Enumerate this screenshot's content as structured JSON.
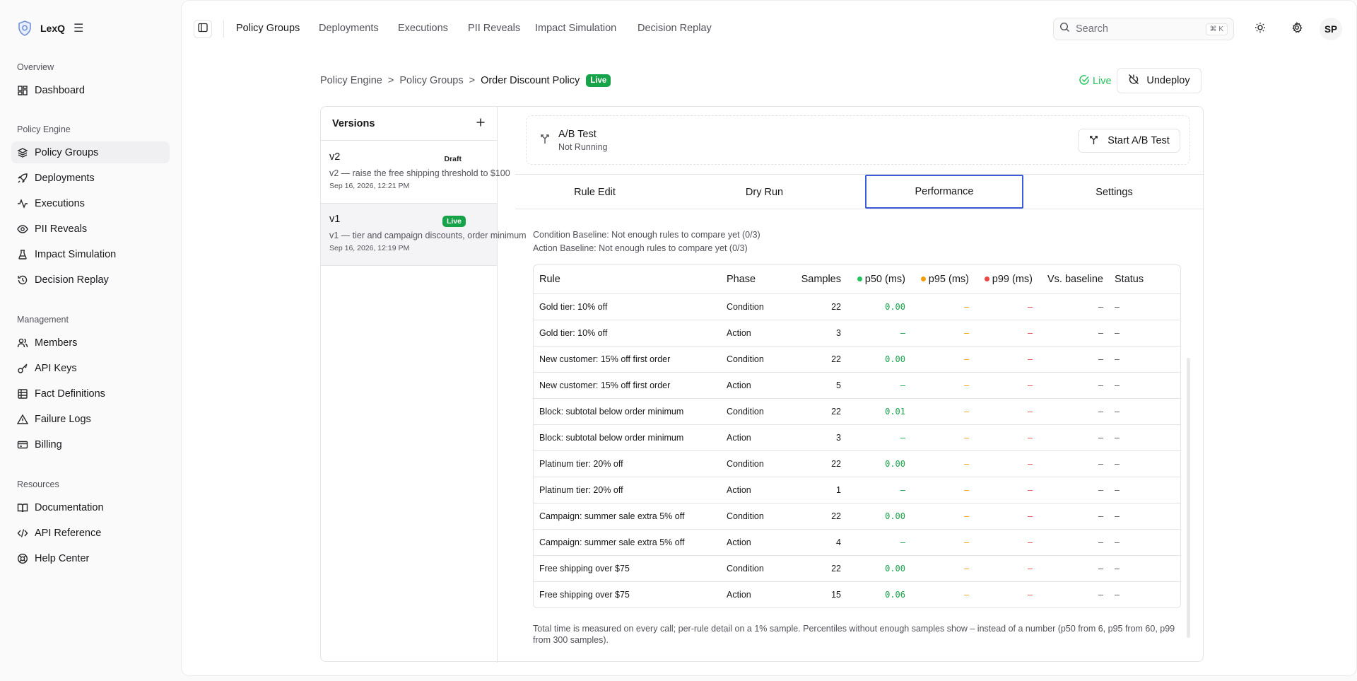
{
  "brand": {
    "name": "LexQ"
  },
  "sidebar": {
    "sections": [
      {
        "label": "Overview",
        "items": [
          {
            "label": "Dashboard",
            "icon": "dashboard-icon"
          }
        ]
      },
      {
        "label": "Policy Engine",
        "items": [
          {
            "label": "Policy Groups",
            "icon": "layers-icon",
            "active": true
          },
          {
            "label": "Deployments",
            "icon": "rocket-icon"
          },
          {
            "label": "Executions",
            "icon": "activity-icon"
          },
          {
            "label": "PII Reveals",
            "icon": "eye-icon"
          },
          {
            "label": "Impact Simulation",
            "icon": "flask-icon"
          },
          {
            "label": "Decision Replay",
            "icon": "history-icon"
          }
        ]
      },
      {
        "label": "Management",
        "items": [
          {
            "label": "Members",
            "icon": "users-icon"
          },
          {
            "label": "API Keys",
            "icon": "key-icon"
          },
          {
            "label": "Fact Definitions",
            "icon": "table-icon"
          },
          {
            "label": "Failure Logs",
            "icon": "alert-triangle-icon"
          },
          {
            "label": "Billing",
            "icon": "credit-card-icon"
          }
        ]
      },
      {
        "label": "Resources",
        "items": [
          {
            "label": "Documentation",
            "icon": "book-icon"
          },
          {
            "label": "API Reference",
            "icon": "code-icon"
          },
          {
            "label": "Help Center",
            "icon": "lifebuoy-icon"
          }
        ]
      }
    ]
  },
  "topnav": {
    "tabs": [
      "Policy Groups",
      "Deployments",
      "Executions",
      "PII Reveals",
      "Impact Simulation",
      "Decision Replay"
    ],
    "active": "Policy Groups"
  },
  "search": {
    "placeholder": "Search",
    "shortcut": "⌘ K"
  },
  "user": {
    "initials": "SP"
  },
  "breadcrumb": {
    "items": [
      "Policy Engine",
      "Policy Groups"
    ],
    "current": "Order Discount Policy",
    "separator": ">",
    "badge": "Live"
  },
  "status": {
    "label": "Live"
  },
  "actions": {
    "undeploy": "Undeploy"
  },
  "versions": {
    "title": "Versions",
    "items": [
      {
        "name": "v2",
        "badge": "Draft",
        "desc": "v2 — raise the free shipping threshold to $100",
        "date": "Sep 16, 2026, 12:21 PM"
      },
      {
        "name": "v1",
        "badge": "Live",
        "desc": "v1 — tier and campaign discounts, order minimum",
        "date": "Sep 16, 2026, 12:19 PM"
      }
    ]
  },
  "ab_test": {
    "title": "A/B Test",
    "status": "Not Running",
    "button": "Start A/B Test"
  },
  "tabs": {
    "items": [
      "Rule Edit",
      "Dry Run",
      "Performance",
      "Settings"
    ],
    "active": "Performance"
  },
  "performance": {
    "condition_baseline": "Condition Baseline: Not enough rules to compare yet (0/3)",
    "action_baseline": "Action Baseline: Not enough rules to compare yet (0/3)",
    "columns": {
      "rule": "Rule",
      "phase": "Phase",
      "samples": "Samples",
      "p50": "p50 (ms)",
      "p95": "p95 (ms)",
      "p99": "p99 (ms)",
      "vs": "Vs. baseline",
      "status": "Status"
    },
    "legend_colors": {
      "p50": "#22c55e",
      "p95": "#f59e0b",
      "p99": "#ef4444"
    },
    "rows": [
      {
        "rule": "Gold tier: 10% off",
        "phase": "Condition",
        "samples": "22",
        "p50": "0.00",
        "p95": "–",
        "p99": "–",
        "vs": "–",
        "status": "–"
      },
      {
        "rule": "Gold tier: 10% off",
        "phase": "Action",
        "samples": "3",
        "p50": "–",
        "p95": "–",
        "p99": "–",
        "vs": "–",
        "status": "–"
      },
      {
        "rule": "New customer: 15% off first order",
        "phase": "Condition",
        "samples": "22",
        "p50": "0.00",
        "p95": "–",
        "p99": "–",
        "vs": "–",
        "status": "–"
      },
      {
        "rule": "New customer: 15% off first order",
        "phase": "Action",
        "samples": "5",
        "p50": "–",
        "p95": "–",
        "p99": "–",
        "vs": "–",
        "status": "–"
      },
      {
        "rule": "Block: subtotal below order minimum",
        "phase": "Condition",
        "samples": "22",
        "p50": "0.01",
        "p95": "–",
        "p99": "–",
        "vs": "–",
        "status": "–"
      },
      {
        "rule": "Block: subtotal below order minimum",
        "phase": "Action",
        "samples": "3",
        "p50": "–",
        "p95": "–",
        "p99": "–",
        "vs": "–",
        "status": "–"
      },
      {
        "rule": "Platinum tier: 20% off",
        "phase": "Condition",
        "samples": "22",
        "p50": "0.00",
        "p95": "–",
        "p99": "–",
        "vs": "–",
        "status": "–"
      },
      {
        "rule": "Platinum tier: 20% off",
        "phase": "Action",
        "samples": "1",
        "p50": "–",
        "p95": "–",
        "p99": "–",
        "vs": "–",
        "status": "–"
      },
      {
        "rule": "Campaign: summer sale extra 5% off",
        "phase": "Condition",
        "samples": "22",
        "p50": "0.00",
        "p95": "–",
        "p99": "–",
        "vs": "–",
        "status": "–"
      },
      {
        "rule": "Campaign: summer sale extra 5% off",
        "phase": "Action",
        "samples": "4",
        "p50": "–",
        "p95": "–",
        "p99": "–",
        "vs": "–",
        "status": "–"
      },
      {
        "rule": "Free shipping over $75",
        "phase": "Condition",
        "samples": "22",
        "p50": "0.00",
        "p95": "–",
        "p99": "–",
        "vs": "–",
        "status": "–"
      },
      {
        "rule": "Free shipping over $75",
        "phase": "Action",
        "samples": "15",
        "p50": "0.06",
        "p95": "–",
        "p99": "–",
        "vs": "–",
        "status": "–"
      }
    ],
    "footnote": "Total time is measured on every call; per-rule detail on a 1% sample. Percentiles without enough samples show – instead of a number (p50 from 6, p95 from 60, p99 from 300 samples)."
  }
}
